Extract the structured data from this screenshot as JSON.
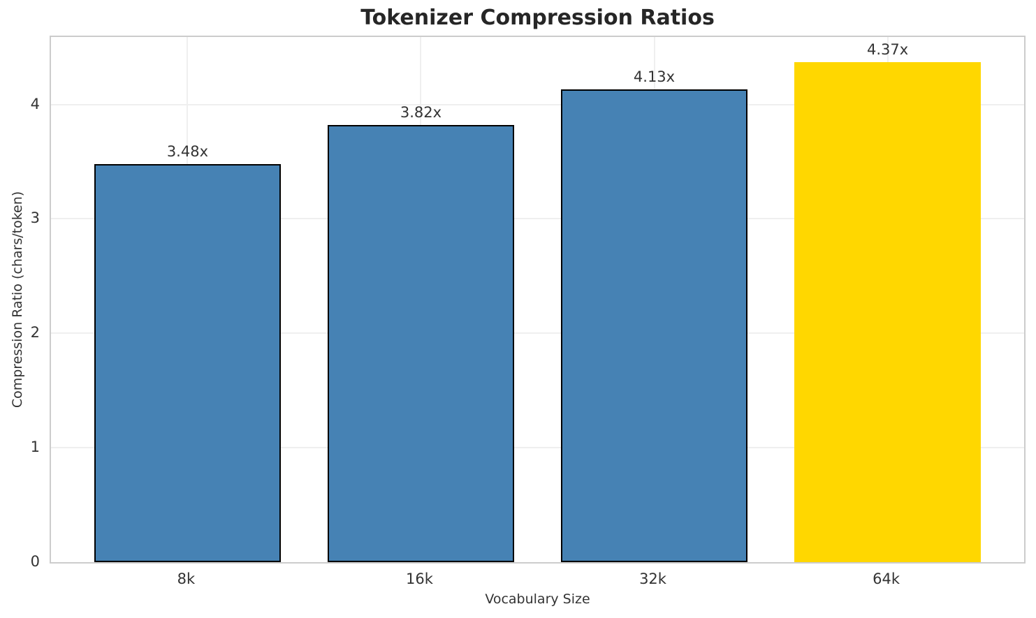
{
  "chart_data": {
    "type": "bar",
    "title": "Tokenizer Compression Ratios",
    "xlabel": "Vocabulary Size",
    "ylabel": "Compression Ratio (chars/token)",
    "categories": [
      "8k",
      "16k",
      "32k",
      "64k"
    ],
    "values": [
      3.48,
      3.82,
      4.13,
      4.37
    ],
    "bar_labels": [
      "3.48x",
      "3.82x",
      "4.13x",
      "4.37x"
    ],
    "bar_colors": [
      "#4682b4",
      "#4682b4",
      "#4682b4",
      "#ffd700"
    ],
    "bar_edge_colors": [
      "#000000",
      "#000000",
      "#000000",
      "none"
    ],
    "yticks": [
      0,
      1,
      2,
      3,
      4
    ],
    "ytick_labels": [
      "0",
      "1",
      "2",
      "3",
      "4"
    ],
    "ylim": [
      0,
      4.59
    ],
    "grid": true,
    "legend_position": "none",
    "colors": {
      "default_bar": "#4682b4",
      "highlight_bar": "#ffd700",
      "grid": "#efefef",
      "spine": "#cccccc",
      "text": "#333333",
      "title": "#262626"
    }
  }
}
